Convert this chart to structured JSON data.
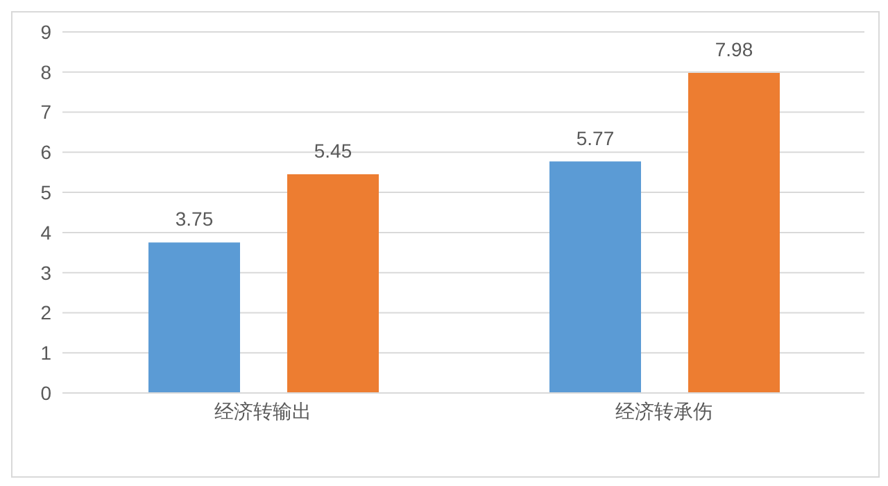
{
  "chart_data": {
    "type": "bar",
    "categories": [
      "经济转输出",
      "经济转承伤"
    ],
    "series": [
      {
        "color": "#5b9bd5",
        "values": [
          3.75,
          5.77
        ]
      },
      {
        "color": "#ed7d31",
        "values": [
          5.45,
          7.98
        ]
      }
    ],
    "ylim": [
      0,
      9
    ],
    "yticks": [
      0,
      1,
      2,
      3,
      4,
      5,
      6,
      7,
      8,
      9
    ],
    "grid": "y",
    "data_labels": true
  }
}
